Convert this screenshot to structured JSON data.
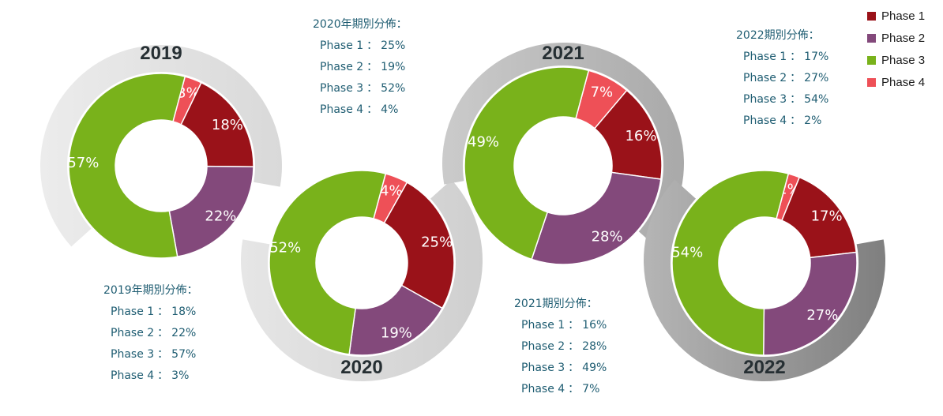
{
  "chart_data": {
    "type": "pie",
    "series_names": [
      "Phase 1",
      "Phase 2",
      "Phase 3",
      "Phase 4"
    ],
    "colors": [
      "#9a1219",
      "#83497b",
      "#79b21b",
      "#ee5057"
    ],
    "legend_placement": "top-right",
    "years": [
      {
        "year": "2019",
        "values": [
          18,
          22,
          57,
          3
        ],
        "labels": [
          "18%",
          "22%",
          "57%",
          "3%"
        ]
      },
      {
        "year": "2020",
        "values": [
          25,
          19,
          52,
          4
        ],
        "labels": [
          "25%",
          "19%",
          "52%",
          "4%"
        ]
      },
      {
        "year": "2021",
        "values": [
          16,
          28,
          49,
          7
        ],
        "labels": [
          "16%",
          "28%",
          "49%",
          "7%"
        ]
      },
      {
        "year": "2022",
        "values": [
          17,
          27,
          54,
          2
        ],
        "labels": [
          "17%",
          "27%",
          "54%",
          "2%"
        ]
      }
    ]
  },
  "annotations": [
    {
      "title": "2019年期別分佈：",
      "rows": [
        {
          "phase": "Phase 1",
          "sep": "：",
          "value": "18%"
        },
        {
          "phase": "Phase 2",
          "sep": "：",
          "value": "22%"
        },
        {
          "phase": "Phase 3",
          "sep": "：",
          "value": "57%"
        },
        {
          "phase": "Phase 4",
          "sep": "：",
          "value": "3%"
        }
      ]
    },
    {
      "title": "2020年期別分佈：",
      "rows": [
        {
          "phase": "Phase 1",
          "sep": "：",
          "value": "25%"
        },
        {
          "phase": "Phase 2",
          "sep": "：",
          "value": "19%"
        },
        {
          "phase": "Phase 3",
          "sep": "：",
          "value": "52%"
        },
        {
          "phase": "Phase 4",
          "sep": "：",
          "value": "4%"
        }
      ]
    },
    {
      "title": "2021期別分佈：",
      "rows": [
        {
          "phase": "Phase 1",
          "sep": "：",
          "value": "16%"
        },
        {
          "phase": "Phase 2",
          "sep": "：",
          "value": "28%"
        },
        {
          "phase": "Phase 3",
          "sep": "：",
          "value": "49%"
        },
        {
          "phase": "Phase 4",
          "sep": "：",
          "value": "7%"
        }
      ]
    },
    {
      "title": "2022期別分佈：",
      "rows": [
        {
          "phase": "Phase 1",
          "sep": "：",
          "value": "17%"
        },
        {
          "phase": "Phase 2",
          "sep": "：",
          "value": "27%"
        },
        {
          "phase": "Phase 3",
          "sep": "：",
          "value": "54%"
        },
        {
          "phase": "Phase 4",
          "sep": "：",
          "value": "2%"
        }
      ]
    }
  ]
}
